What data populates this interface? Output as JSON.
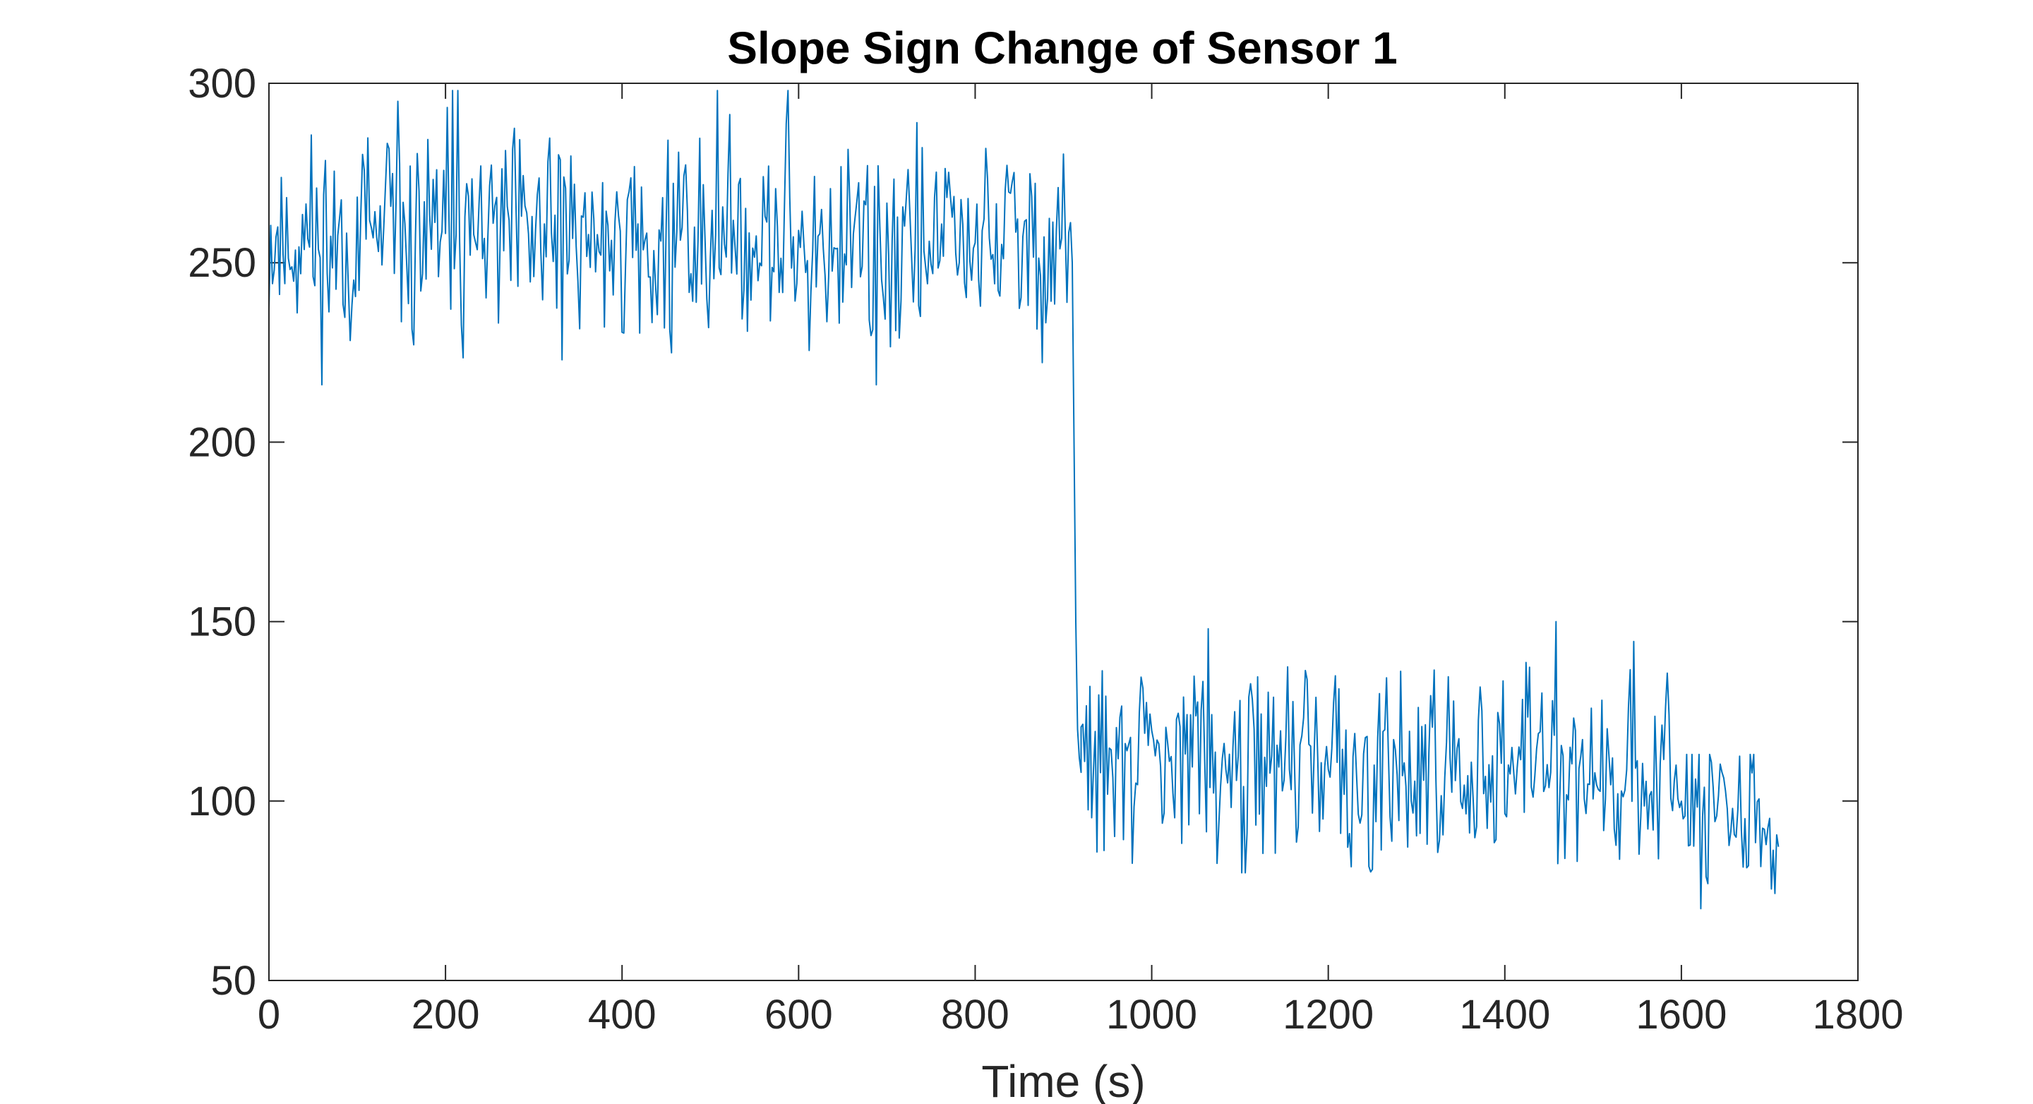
{
  "chart_data": {
    "type": "line",
    "title": "Slope Sign Change of Sensor 1",
    "xlabel": "Time (s)",
    "ylabel": "",
    "xlim": [
      0,
      1800
    ],
    "ylim": [
      50,
      300
    ],
    "xticks": [
      0,
      200,
      400,
      600,
      800,
      1000,
      1200,
      1400,
      1600,
      1800
    ],
    "yticks": [
      50,
      100,
      150,
      200,
      250,
      300
    ],
    "grid": false,
    "legend": "none",
    "series": [
      {
        "color": "#0072BD",
        "segments": [
          {
            "x_start": 0,
            "x_end": 910,
            "step": 2,
            "mean": 256,
            "spread": 15,
            "min": 216,
            "max": 298,
            "seed": 11
          },
          {
            "x_start": 910,
            "x_end": 920,
            "step": 2,
            "values": [
              250,
              200,
              150,
              120,
              112,
              108
            ]
          },
          {
            "x_start": 920,
            "x_end": 1300,
            "step": 2,
            "mean": 112,
            "spread": 13,
            "min": 80,
            "max": 148,
            "seed": 29
          },
          {
            "x_start": 1300,
            "x_end": 1600,
            "step": 2,
            "mean": 110,
            "spread": 14,
            "min": 72,
            "max": 150,
            "seed": 47
          },
          {
            "x_start": 1600,
            "x_end": 1712,
            "step": 2,
            "mean": 95,
            "spread": 11,
            "min": 70,
            "max": 113,
            "seed": 83
          }
        ]
      }
    ]
  }
}
